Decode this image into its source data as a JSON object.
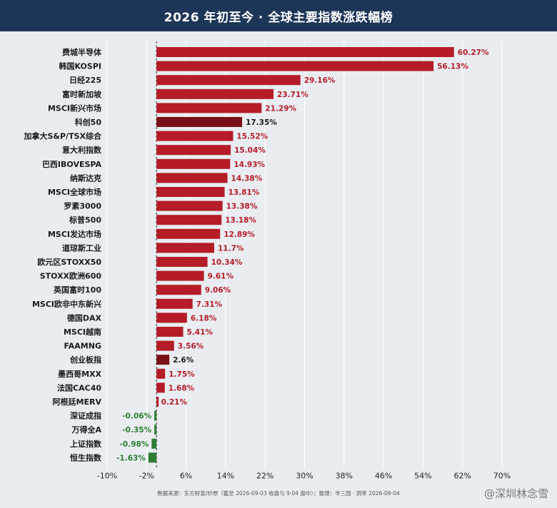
{
  "title": "2026 年初至今 · 全球主要指数涨跌幅榜",
  "source_note": "数据来源：东方财富/妙想（截至 2026-09-03 收盘与 9-04 盘中）；整理：岑三园 · 洞莘 2026-09-04",
  "watermark": "@深圳林念雪",
  "colors": {
    "positive": "#b51c27",
    "highlight": "#7a0f17",
    "negative": "#2e7d32",
    "header": "#1d3557"
  },
  "chart_data": {
    "type": "bar",
    "orientation": "horizontal",
    "title": "2026 年初至今 · 全球主要指数涨跌幅榜",
    "xlim": [
      -10,
      70
    ],
    "x_ticks": [
      -10,
      -2,
      6,
      14,
      22,
      30,
      38,
      46,
      54,
      62,
      70
    ],
    "x_tick_labels": [
      "-10%",
      "-2%",
      "6%",
      "14%",
      "22%",
      "30%",
      "38%",
      "46%",
      "54%",
      "62%",
      "70%"
    ],
    "grid": true,
    "categories": [
      "费城半导体",
      "韩国KOSPI",
      "日经225",
      "富时新加坡",
      "MSCI新兴市场",
      "科创50",
      "加拿大S&P/TSX综合",
      "意大利指数",
      "巴西IBOVESPA",
      "纳斯达克",
      "MSCI全球市场",
      "罗素3000",
      "标普500",
      "MSCI发达市场",
      "道琼斯工业",
      "欧元区STOXX50",
      "STOXX欧洲600",
      "英国富时100",
      "MSCI欧非中东新兴",
      "德国DAX",
      "MSCI越南",
      "FAAMNG",
      "创业板指",
      "墨西哥MXX",
      "法国CAC40",
      "阿根廷MERV",
      "深证成指",
      "万得全A",
      "上证指数",
      "恒生指数"
    ],
    "values": [
      60.27,
      56.13,
      29.16,
      23.71,
      21.29,
      17.35,
      15.52,
      15.04,
      14.93,
      14.38,
      13.81,
      13.38,
      13.18,
      12.89,
      11.7,
      10.34,
      9.61,
      9.06,
      7.31,
      6.18,
      5.41,
      3.56,
      2.6,
      1.75,
      1.68,
      0.21,
      -0.06,
      -0.35,
      -0.98,
      -1.63
    ],
    "value_labels": [
      "60.27%",
      "56.13%",
      "29.16%",
      "23.71%",
      "21.29%",
      "17.35%",
      "15.52%",
      "15.04%",
      "14.93%",
      "14.38%",
      "13.81%",
      "13.38%",
      "13.18%",
      "12.89%",
      "11.7%",
      "10.34%",
      "9.61%",
      "9.06%",
      "7.31%",
      "6.18%",
      "5.41%",
      "3.56%",
      "2.6%",
      "1.75%",
      "1.68%",
      "0.21%",
      "-0.06%",
      "-0.35%",
      "-0.98%",
      "-1.63%"
    ],
    "highlighted": [
      "科创50",
      "创业板指"
    ]
  }
}
